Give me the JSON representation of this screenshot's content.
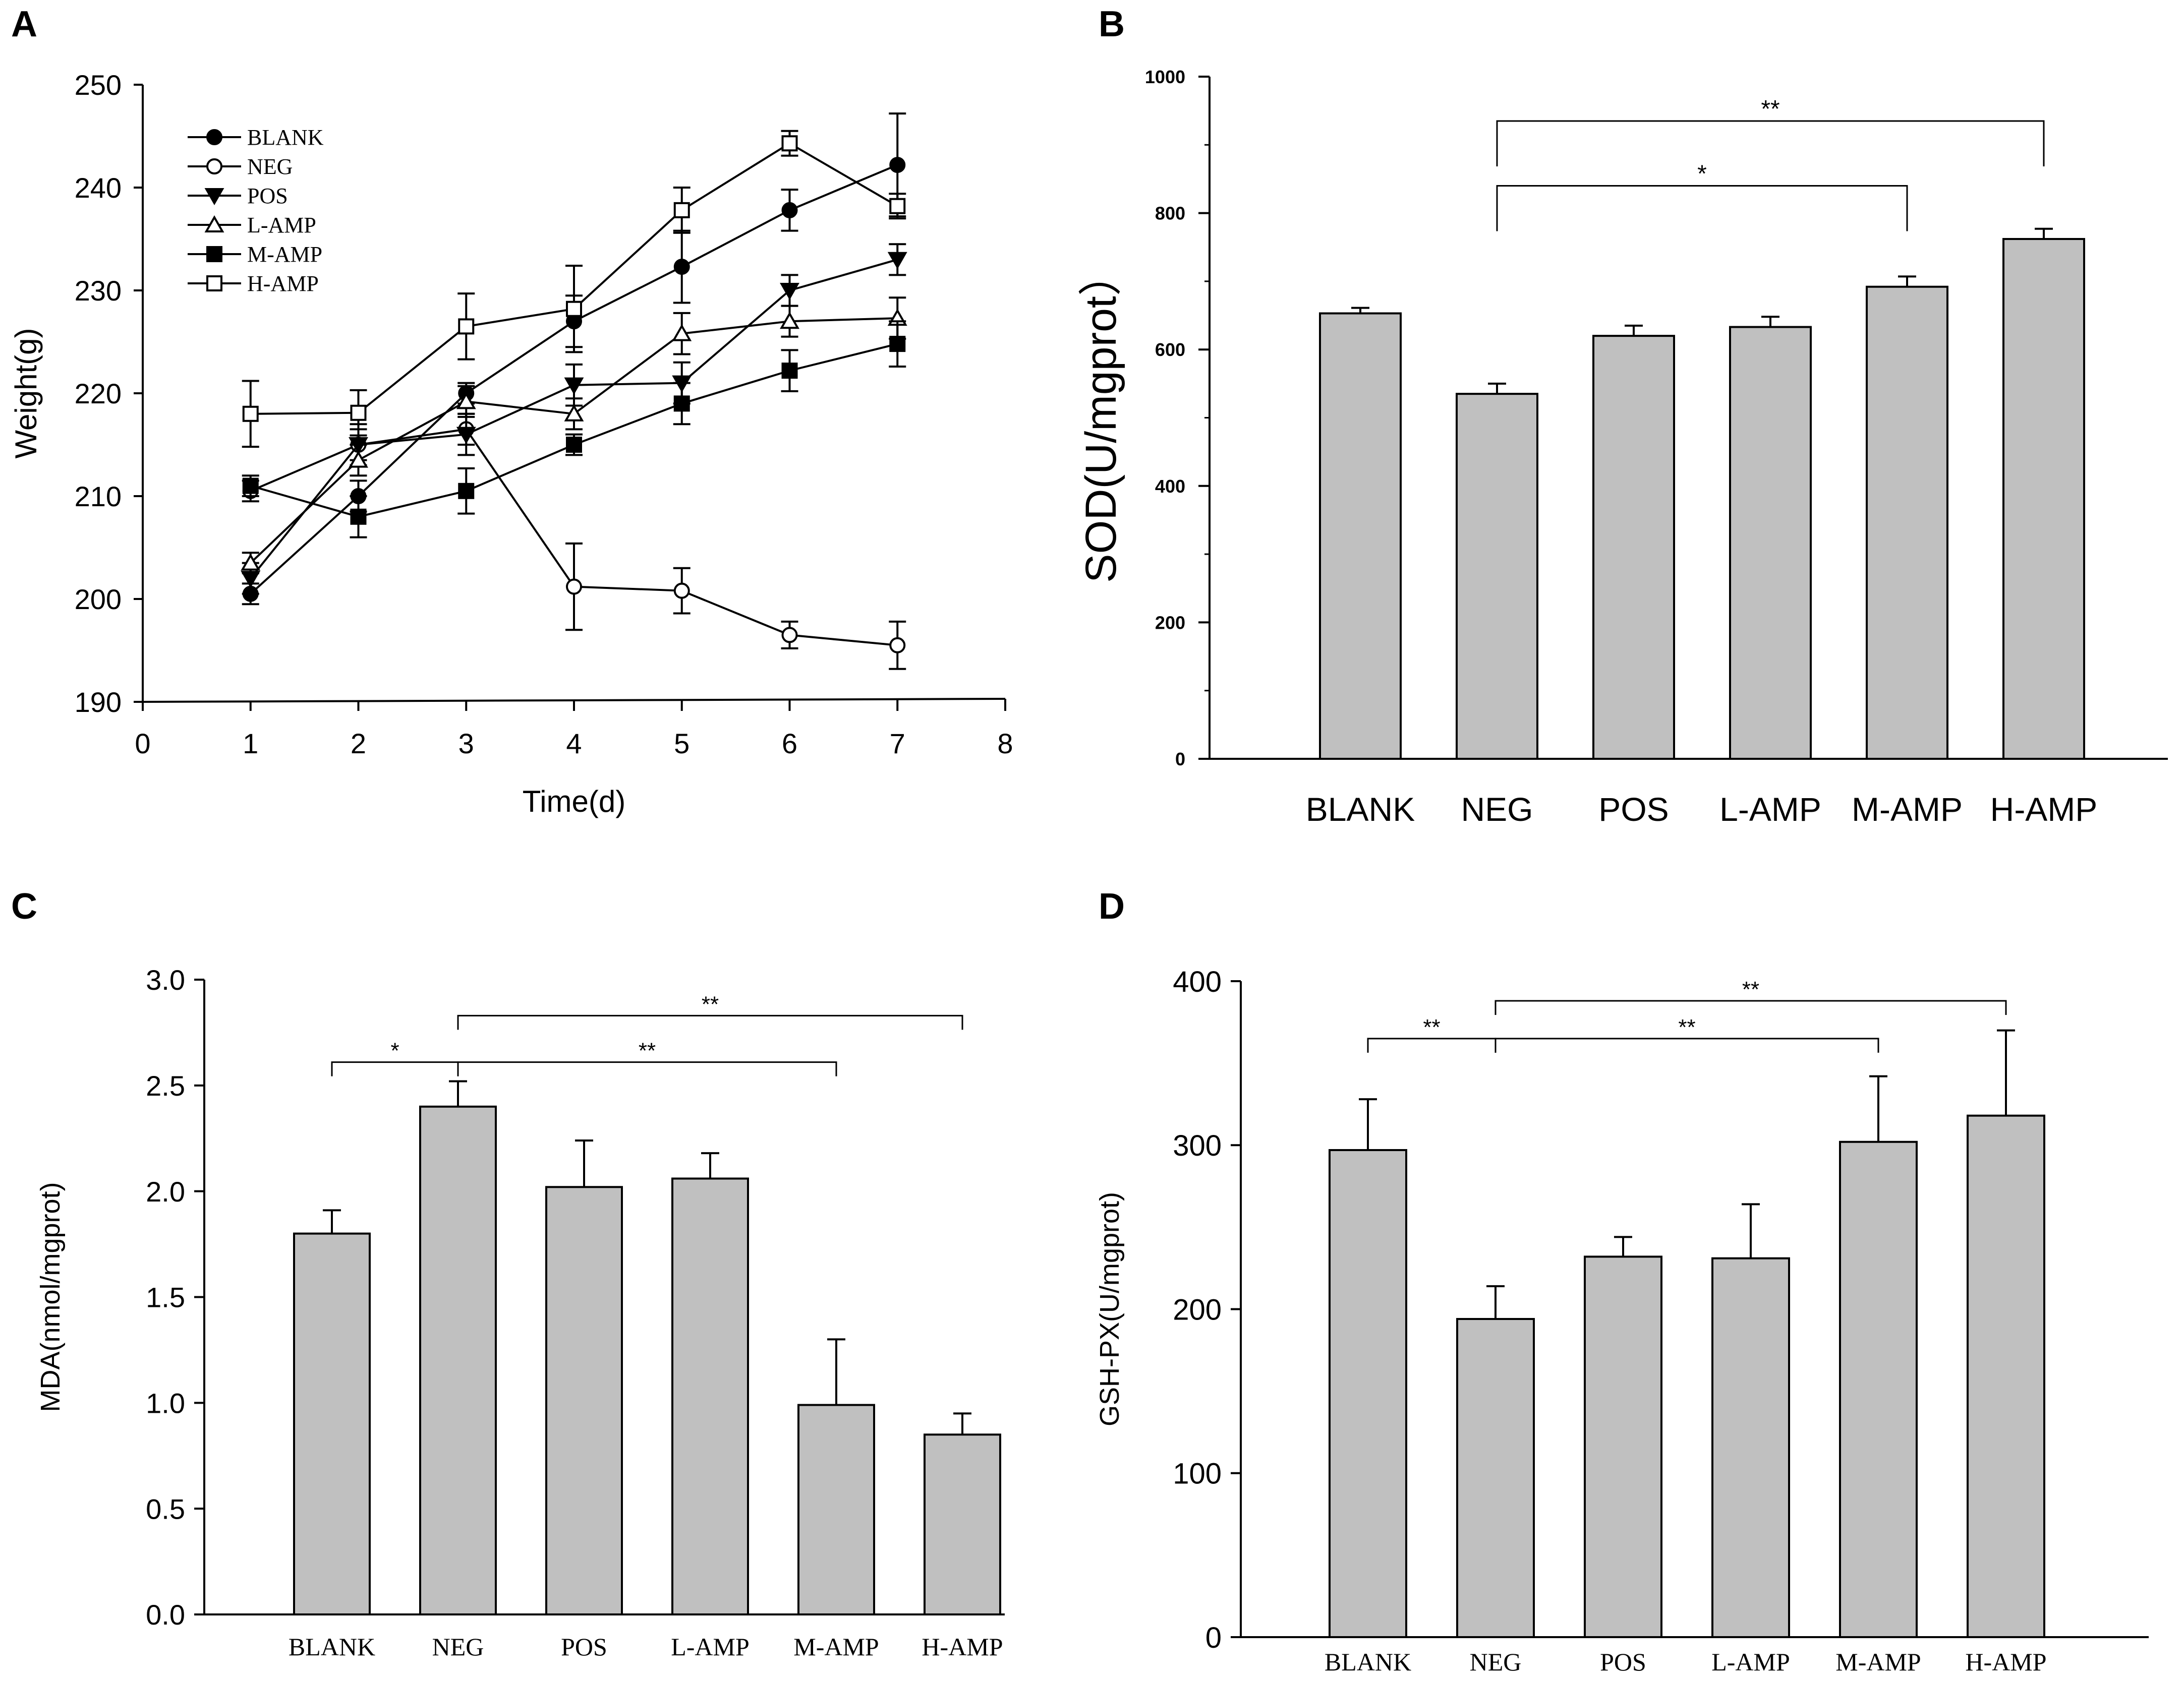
{
  "chart_data": [
    {
      "panel": "A",
      "type": "line",
      "xlabel": "Time(d)",
      "ylabel": "Weight(g)",
      "xlim": [
        0,
        8
      ],
      "ylim": [
        190,
        250
      ],
      "xticks": [
        0,
        1,
        2,
        3,
        4,
        5,
        6,
        7,
        8
      ],
      "yticks": [
        190,
        200,
        210,
        220,
        230,
        240,
        250
      ],
      "x": [
        1,
        2,
        3,
        4,
        5,
        6,
        7
      ],
      "series": [
        {
          "name": "BLANK",
          "marker": "filled-circle",
          "values": [
            200.5,
            210,
            220,
            227,
            232.3,
            237.8,
            242.2
          ],
          "errors": [
            1.0,
            1.5,
            1.0,
            2.5,
            3.5,
            2.0,
            5.0
          ]
        },
        {
          "name": "NEG",
          "marker": "open-circle",
          "values": [
            210.5,
            215,
            216.5,
            201.2,
            200.8,
            196.5,
            195.5
          ],
          "errors": [
            1.0,
            1.5,
            1.5,
            4.2,
            2.2,
            1.3,
            2.3
          ]
        },
        {
          "name": "POS",
          "marker": "filled-triangle-down",
          "values": [
            202,
            215,
            216,
            220.8,
            221,
            230,
            233
          ],
          "errors": [
            1.5,
            2.0,
            2.0,
            2.0,
            2.0,
            1.5,
            1.5
          ]
        },
        {
          "name": "L-AMP",
          "marker": "open-triangle-up",
          "values": [
            203.5,
            213.5,
            219.2,
            218,
            225.8,
            227,
            227.3
          ],
          "errors": [
            1.0,
            1.5,
            1.5,
            1.5,
            2.0,
            1.5,
            2.0
          ]
        },
        {
          "name": "M-AMP",
          "marker": "filled-square",
          "values": [
            211,
            208,
            210.5,
            215,
            219,
            222.2,
            224.8
          ],
          "errors": [
            1.0,
            2.0,
            2.2,
            1.0,
            2.0,
            2.0,
            2.2
          ]
        },
        {
          "name": "H-AMP",
          "marker": "open-square",
          "values": [
            218,
            218.1,
            226.5,
            228.2,
            237.8,
            244.3,
            238.2
          ],
          "errors": [
            3.2,
            2.2,
            3.2,
            4.2,
            2.2,
            1.2,
            1.2
          ]
        }
      ]
    },
    {
      "panel": "B",
      "type": "bar",
      "ylabel": "SOD(U/mgprot）",
      "ylim": [
        0,
        1000
      ],
      "yticks": [
        0,
        200,
        400,
        600,
        800,
        1000
      ],
      "categories": [
        "BLANK",
        "NEG",
        "POS",
        "L-AMP",
        "M-AMP",
        "H-AMP"
      ],
      "values": [
        653,
        535,
        620,
        633,
        692,
        762
      ],
      "errors": [
        8,
        15,
        15,
        15,
        15,
        15
      ],
      "significance": [
        {
          "from": "NEG",
          "to": "M-AMP",
          "label": "*",
          "y": 840
        },
        {
          "from": "NEG",
          "to": "H-AMP",
          "label": "**",
          "y": 935
        }
      ]
    },
    {
      "panel": "C",
      "type": "bar",
      "ylabel": "MDA(nmol/mgprot)",
      "ylim": [
        0,
        3.0
      ],
      "yticks": [
        "0.0",
        "0.5",
        "1.0",
        "1.5",
        "2.0",
        "2.5",
        "3.0"
      ],
      "categories": [
        "BLANK",
        "NEG",
        "POS",
        "L-AMP",
        "M-AMP",
        "H-AMP"
      ],
      "values": [
        1.8,
        2.4,
        2.02,
        2.06,
        0.99,
        0.85
      ],
      "errors": [
        0.11,
        0.12,
        0.22,
        0.12,
        0.31,
        0.1
      ],
      "significance": [
        {
          "from": "BLANK",
          "to": "NEG",
          "label": "*",
          "y": 2.61
        },
        {
          "from": "NEG",
          "to": "M-AMP",
          "label": "**",
          "y": 2.61
        },
        {
          "from": "NEG",
          "to": "H-AMP",
          "label": "**",
          "y": 2.83
        }
      ]
    },
    {
      "panel": "D",
      "type": "bar",
      "ylabel": "GSH-PX(U/mgprot)",
      "ylim": [
        0,
        400
      ],
      "yticks": [
        0,
        100,
        200,
        300,
        400
      ],
      "categories": [
        "BLANK",
        "NEG",
        "POS",
        "L-AMP",
        "M-AMP",
        "H-AMP"
      ],
      "values": [
        297,
        194,
        232,
        231,
        302,
        318
      ],
      "errors": [
        31,
        20,
        12,
        33,
        40,
        52
      ],
      "significance": [
        {
          "from": "BLANK",
          "to": "NEG",
          "label": "**",
          "y": 365
        },
        {
          "from": "NEG",
          "to": "M-AMP",
          "label": "**",
          "y": 365
        },
        {
          "from": "NEG",
          "to": "H-AMP",
          "label": "**",
          "y": 388
        }
      ]
    }
  ]
}
